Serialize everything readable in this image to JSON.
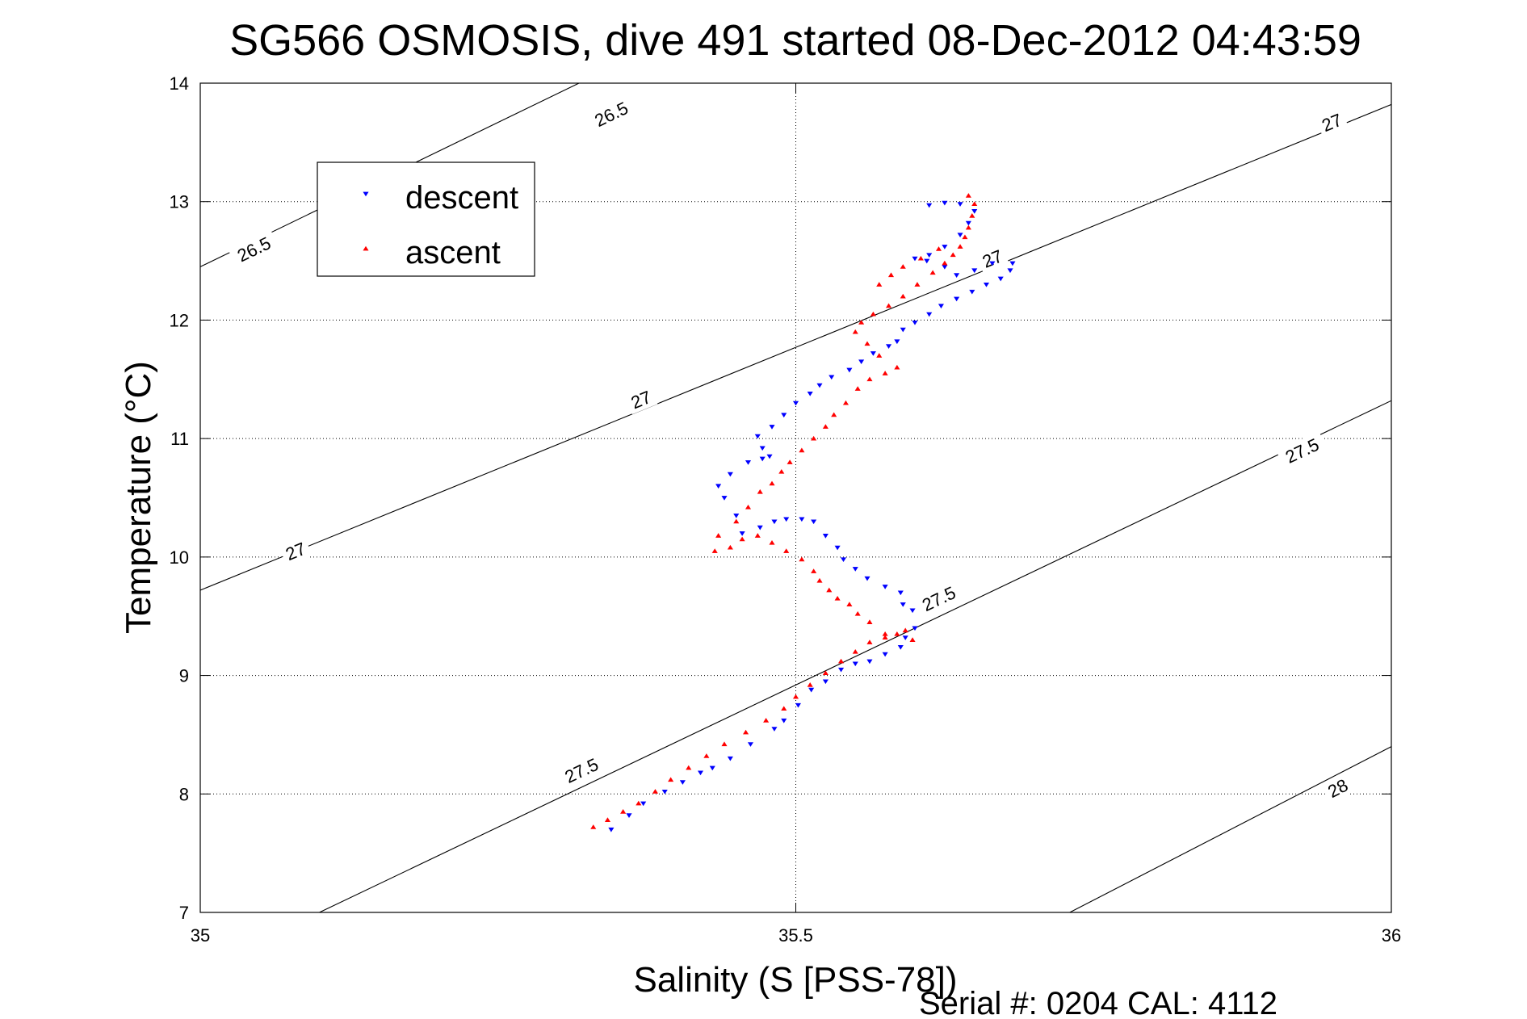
{
  "chart_data": {
    "type": "scatter",
    "title": "SG566 OSMOSIS, dive 491 started 08-Dec-2012 04:43:59",
    "xlabel": "Salinity (S [PSS-78])",
    "ylabel": "Temperature (°C)",
    "xlim": [
      35,
      36
    ],
    "ylim": [
      7,
      14
    ],
    "x_ticks": [
      35,
      35.5,
      36
    ],
    "x_tick_labels": [
      "35",
      "35.5",
      "36"
    ],
    "y_ticks": [
      7,
      8,
      9,
      10,
      11,
      12,
      13,
      14
    ],
    "y_tick_labels": [
      "7",
      "8",
      "9",
      "10",
      "11",
      "12",
      "13",
      "14"
    ],
    "grid": true,
    "legend_position": "top-left",
    "footer": "Serial #: 0204  CAL: 4112",
    "contour_color": "#000000",
    "contours": [
      {
        "label": "26.5",
        "points": [
          [
            35.0,
            12.45
          ],
          [
            35.4,
            14.4
          ]
        ],
        "labels_at": [
          [
            35.045,
            12.6
          ],
          [
            35.345,
            13.74
          ]
        ]
      },
      {
        "label": "27",
        "points": [
          [
            35.0,
            9.72
          ],
          [
            36.0,
            13.82
          ]
        ],
        "labels_at": [
          [
            35.08,
            10.05
          ],
          [
            35.37,
            11.33
          ],
          [
            35.665,
            12.52
          ],
          [
            35.95,
            13.67
          ]
        ]
      },
      {
        "label": "27.5",
        "points": [
          [
            35.1,
            7.0
          ],
          [
            36.0,
            11.32
          ]
        ],
        "labels_at": [
          [
            35.32,
            8.2
          ],
          [
            35.62,
            9.65
          ],
          [
            35.925,
            10.9
          ]
        ]
      },
      {
        "label": "28",
        "points": [
          [
            35.73,
            7.0
          ],
          [
            36.0,
            8.4
          ]
        ],
        "labels_at": [
          [
            35.955,
            8.05
          ]
        ]
      }
    ],
    "series": [
      {
        "name": "descent",
        "color": "#0000ff",
        "marker": "triangle-down",
        "x": [
          35.345,
          35.36,
          35.372,
          35.39,
          35.405,
          35.42,
          35.43,
          35.445,
          35.462,
          35.482,
          35.49,
          35.502,
          35.513,
          35.525,
          35.538,
          35.55,
          35.562,
          35.575,
          35.588,
          35.592,
          35.6,
          35.598,
          35.59,
          35.588,
          35.575,
          35.56,
          35.55,
          35.54,
          35.535,
          35.525,
          35.515,
          35.505,
          35.492,
          35.482,
          35.47,
          35.455,
          35.45,
          35.44,
          35.435,
          35.445,
          35.46,
          35.472,
          35.478,
          35.472,
          35.468,
          35.48,
          35.49,
          35.5,
          35.512,
          35.52,
          35.53,
          35.545,
          35.555,
          35.565,
          35.578,
          35.585,
          35.59,
          35.6,
          35.612,
          35.622,
          35.635,
          35.648,
          35.66,
          35.672,
          35.68,
          35.682,
          35.665,
          35.65,
          35.635,
          35.625,
          35.61,
          35.6,
          35.612,
          35.625,
          35.638,
          35.645,
          35.65,
          35.638,
          35.625,
          35.612
        ],
        "y": [
          7.7,
          7.82,
          7.92,
          8.02,
          8.1,
          8.18,
          8.22,
          8.3,
          8.42,
          8.55,
          8.62,
          8.75,
          8.88,
          8.95,
          9.05,
          9.1,
          9.12,
          9.18,
          9.24,
          9.32,
          9.4,
          9.55,
          9.6,
          9.7,
          9.75,
          9.82,
          9.9,
          9.98,
          10.08,
          10.18,
          10.3,
          10.32,
          10.32,
          10.3,
          10.25,
          10.2,
          10.35,
          10.5,
          10.6,
          10.7,
          10.8,
          10.83,
          10.85,
          10.92,
          11.02,
          11.1,
          11.2,
          11.3,
          11.38,
          11.45,
          11.52,
          11.58,
          11.65,
          11.72,
          11.78,
          11.82,
          11.92,
          11.98,
          12.05,
          12.12,
          12.18,
          12.24,
          12.3,
          12.35,
          12.42,
          12.48,
          12.48,
          12.42,
          12.38,
          12.45,
          12.5,
          12.52,
          12.55,
          12.62,
          12.72,
          12.82,
          12.92,
          12.98,
          12.99,
          12.97
        ]
      },
      {
        "name": "ascent",
        "color": "#ff0000",
        "marker": "triangle-up",
        "x": [
          35.33,
          35.342,
          35.355,
          35.368,
          35.382,
          35.395,
          35.41,
          35.425,
          35.44,
          35.458,
          35.475,
          35.49,
          35.5,
          35.512,
          35.525,
          35.538,
          35.55,
          35.562,
          35.575,
          35.585,
          35.592,
          35.598,
          35.575,
          35.562,
          35.552,
          35.545,
          35.535,
          35.528,
          35.52,
          35.515,
          35.505,
          35.492,
          35.48,
          35.468,
          35.455,
          35.445,
          35.432,
          35.435,
          35.45,
          35.46,
          35.47,
          35.48,
          35.488,
          35.495,
          35.505,
          35.515,
          35.525,
          35.532,
          35.542,
          35.552,
          35.562,
          35.575,
          35.585,
          35.57,
          35.56,
          35.55,
          35.555,
          35.565,
          35.578,
          35.59,
          35.602,
          35.615,
          35.625,
          35.632,
          35.638,
          35.642,
          35.645,
          35.648,
          35.65,
          35.645,
          35.62,
          35.605,
          35.59,
          35.58,
          35.57
        ],
        "y": [
          7.72,
          7.78,
          7.85,
          7.92,
          8.02,
          8.12,
          8.22,
          8.32,
          8.42,
          8.52,
          8.62,
          8.72,
          8.82,
          8.92,
          9.02,
          9.12,
          9.2,
          9.28,
          9.32,
          9.35,
          9.38,
          9.3,
          9.35,
          9.45,
          9.52,
          9.6,
          9.65,
          9.72,
          9.8,
          9.88,
          9.98,
          10.05,
          10.12,
          10.18,
          10.15,
          10.08,
          10.05,
          10.18,
          10.3,
          10.42,
          10.55,
          10.62,
          10.72,
          10.8,
          10.9,
          11.0,
          11.1,
          11.2,
          11.3,
          11.42,
          11.5,
          11.55,
          11.6,
          11.7,
          11.8,
          11.9,
          11.98,
          12.05,
          12.12,
          12.2,
          12.3,
          12.4,
          12.48,
          12.55,
          12.62,
          12.7,
          12.78,
          12.88,
          12.98,
          13.05,
          12.6,
          12.52,
          12.45,
          12.38,
          12.3
        ]
      }
    ]
  }
}
